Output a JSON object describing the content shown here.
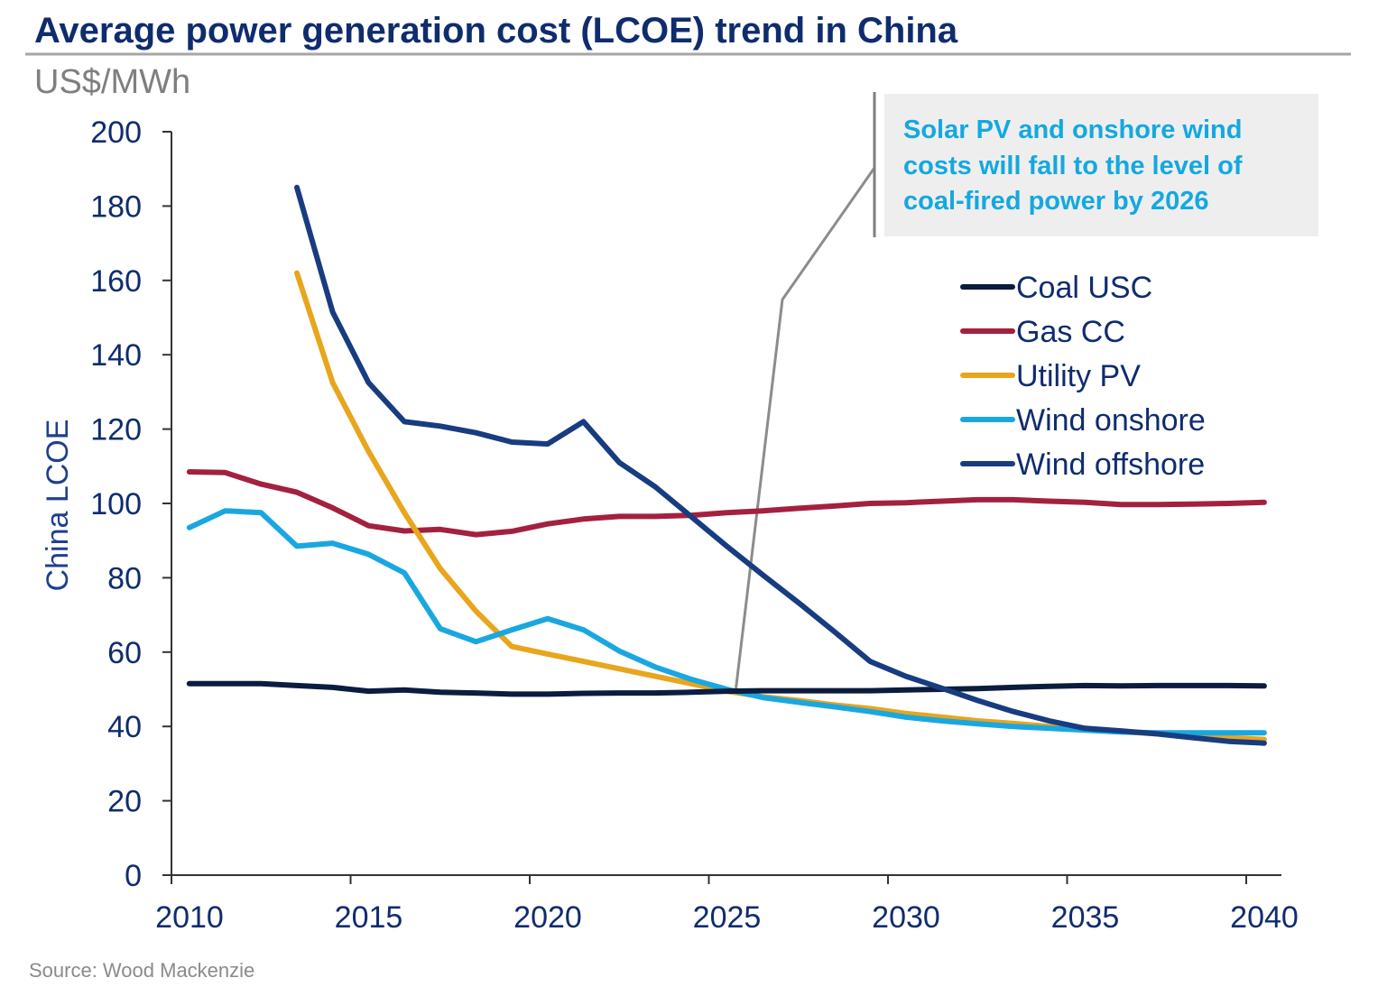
{
  "chart_data": {
    "type": "line",
    "title": "Average power generation cost (LCOE) trend in China",
    "subtitle": "US$/MWh",
    "ylabel": "China LCOE",
    "xlim": [
      2010,
      2040.5
    ],
    "ylim": [
      0,
      200
    ],
    "x_ticks": [
      "2010",
      "2015",
      "2020",
      "2025",
      "2030",
      "2035",
      "2040"
    ],
    "y_ticks": [
      "0",
      "20",
      "40",
      "60",
      "80",
      "100",
      "120",
      "140",
      "160",
      "180",
      "200"
    ],
    "legend_position": "right",
    "annotation": {
      "lines": [
        "Solar PV and onshore wind",
        "costs will fall to the level of",
        "coal-fired power by 2026"
      ],
      "points_to": [
        2026,
        52
      ]
    },
    "source": "Source: Wood Mackenzie",
    "series": [
      {
        "name": "Coal USC",
        "color": "#0b1c3f",
        "points": [
          [
            2010.5,
            51.5
          ],
          [
            2011.5,
            51.5
          ],
          [
            2012.5,
            51.5
          ],
          [
            2013.5,
            51
          ],
          [
            2014.5,
            50.5
          ],
          [
            2015.5,
            49.5
          ],
          [
            2016.5,
            49.8
          ],
          [
            2017.5,
            49.2
          ],
          [
            2018.5,
            49
          ],
          [
            2019.5,
            48.7
          ],
          [
            2020.5,
            48.7
          ],
          [
            2021.5,
            48.9
          ],
          [
            2022.5,
            49
          ],
          [
            2023.5,
            49
          ],
          [
            2024.5,
            49.2
          ],
          [
            2025.5,
            49.5
          ],
          [
            2026.5,
            49.6
          ],
          [
            2027.5,
            49.6
          ],
          [
            2028.5,
            49.6
          ],
          [
            2029.5,
            49.6
          ],
          [
            2030.5,
            49.8
          ],
          [
            2031.5,
            50
          ],
          [
            2032.5,
            50.2
          ],
          [
            2033.5,
            50.5
          ],
          [
            2034.5,
            50.8
          ],
          [
            2035.5,
            51
          ],
          [
            2036.5,
            50.9
          ],
          [
            2037.5,
            51
          ],
          [
            2038.5,
            51
          ],
          [
            2039.5,
            51
          ],
          [
            2040.5,
            50.9
          ]
        ]
      },
      {
        "name": "Gas CC",
        "color": "#a3213f",
        "points": [
          [
            2010.5,
            108.5
          ],
          [
            2011.5,
            108.3
          ],
          [
            2012.5,
            105.2
          ],
          [
            2013.5,
            103
          ],
          [
            2014.5,
            98.8
          ],
          [
            2015.5,
            94
          ],
          [
            2016.5,
            92.6
          ],
          [
            2017.5,
            93
          ],
          [
            2018.5,
            91.6
          ],
          [
            2019.5,
            92.5
          ],
          [
            2020.5,
            94.5
          ],
          [
            2021.5,
            95.8
          ],
          [
            2022.5,
            96.5
          ],
          [
            2023.5,
            96.5
          ],
          [
            2024.5,
            96.8
          ],
          [
            2025.5,
            97.5
          ],
          [
            2026.5,
            98
          ],
          [
            2027.5,
            98.7
          ],
          [
            2028.5,
            99.3
          ],
          [
            2029.5,
            100
          ],
          [
            2030.5,
            100.2
          ],
          [
            2031.5,
            100.6
          ],
          [
            2032.5,
            101
          ],
          [
            2033.5,
            101
          ],
          [
            2034.5,
            100.6
          ],
          [
            2035.5,
            100.3
          ],
          [
            2036.5,
            99.7
          ],
          [
            2037.5,
            99.7
          ],
          [
            2038.5,
            99.8
          ],
          [
            2039.5,
            100
          ],
          [
            2040.5,
            100.3
          ]
        ]
      },
      {
        "name": "Utility PV",
        "color": "#e8a61d",
        "points": [
          [
            2013.5,
            162
          ],
          [
            2014.5,
            132.5
          ],
          [
            2015.5,
            114
          ],
          [
            2016.5,
            97.5
          ],
          [
            2017.5,
            82.5
          ],
          [
            2018.5,
            71
          ],
          [
            2019.5,
            61.5
          ],
          [
            2020.5,
            59.5
          ],
          [
            2021.5,
            57.5
          ],
          [
            2022.5,
            55.5
          ],
          [
            2023.5,
            53.5
          ],
          [
            2024.5,
            51.5
          ],
          [
            2025.5,
            49.5
          ],
          [
            2026.5,
            48
          ],
          [
            2027.5,
            47
          ],
          [
            2028.5,
            45.8
          ],
          [
            2029.5,
            44.8
          ],
          [
            2030.5,
            43.5
          ],
          [
            2031.5,
            42.5
          ],
          [
            2032.5,
            41.5
          ],
          [
            2033.5,
            40.8
          ],
          [
            2034.5,
            40
          ],
          [
            2035.5,
            39.3
          ],
          [
            2036.5,
            38.6
          ],
          [
            2037.5,
            38
          ],
          [
            2038.5,
            37.5
          ],
          [
            2039.5,
            37
          ],
          [
            2040.5,
            36.5
          ]
        ]
      },
      {
        "name": "Wind onshore",
        "color": "#1aa7e0",
        "points": [
          [
            2010.5,
            93.5
          ],
          [
            2011.5,
            98
          ],
          [
            2012.5,
            97.5
          ],
          [
            2013.5,
            88.5
          ],
          [
            2014.5,
            89.3
          ],
          [
            2015.5,
            86.3
          ],
          [
            2016.5,
            81.3
          ],
          [
            2017.5,
            66.3
          ],
          [
            2018.5,
            62.8
          ],
          [
            2019.5,
            66
          ],
          [
            2020.5,
            69
          ],
          [
            2021.5,
            66
          ],
          [
            2022.5,
            60.3
          ],
          [
            2023.5,
            56
          ],
          [
            2024.5,
            52.7
          ],
          [
            2025.5,
            50
          ],
          [
            2026.5,
            47.8
          ],
          [
            2027.5,
            46.5
          ],
          [
            2028.5,
            45.3
          ],
          [
            2029.5,
            44
          ],
          [
            2030.5,
            42.5
          ],
          [
            2031.5,
            41.5
          ],
          [
            2032.5,
            40.7
          ],
          [
            2033.5,
            40
          ],
          [
            2034.5,
            39.5
          ],
          [
            2035.5,
            39
          ],
          [
            2036.5,
            38.5
          ],
          [
            2037.5,
            38.3
          ],
          [
            2038.5,
            38.3
          ],
          [
            2039.5,
            38.3
          ],
          [
            2040.5,
            38.3
          ]
        ]
      },
      {
        "name": "Wind offshore",
        "color": "#183c80",
        "points": [
          [
            2013.5,
            185
          ],
          [
            2014.5,
            151.5
          ],
          [
            2015.5,
            132.5
          ],
          [
            2016.5,
            122
          ],
          [
            2017.5,
            120.8
          ],
          [
            2018.5,
            119
          ],
          [
            2019.5,
            116.5
          ],
          [
            2020.5,
            116
          ],
          [
            2021.5,
            122
          ],
          [
            2022.5,
            111
          ],
          [
            2023.5,
            104.5
          ],
          [
            2024.5,
            96.5
          ],
          [
            2025.5,
            88.5
          ],
          [
            2026.5,
            80.8
          ],
          [
            2027.5,
            73.3
          ],
          [
            2028.5,
            65.5
          ],
          [
            2029.5,
            57.5
          ],
          [
            2030.5,
            53.5
          ],
          [
            2031.5,
            50.3
          ],
          [
            2032.5,
            47
          ],
          [
            2033.5,
            44
          ],
          [
            2034.5,
            41.5
          ],
          [
            2035.5,
            39.5
          ],
          [
            2036.5,
            38.8
          ],
          [
            2037.5,
            38
          ],
          [
            2038.5,
            37
          ],
          [
            2039.5,
            36
          ],
          [
            2040.5,
            35.5
          ]
        ]
      }
    ]
  }
}
